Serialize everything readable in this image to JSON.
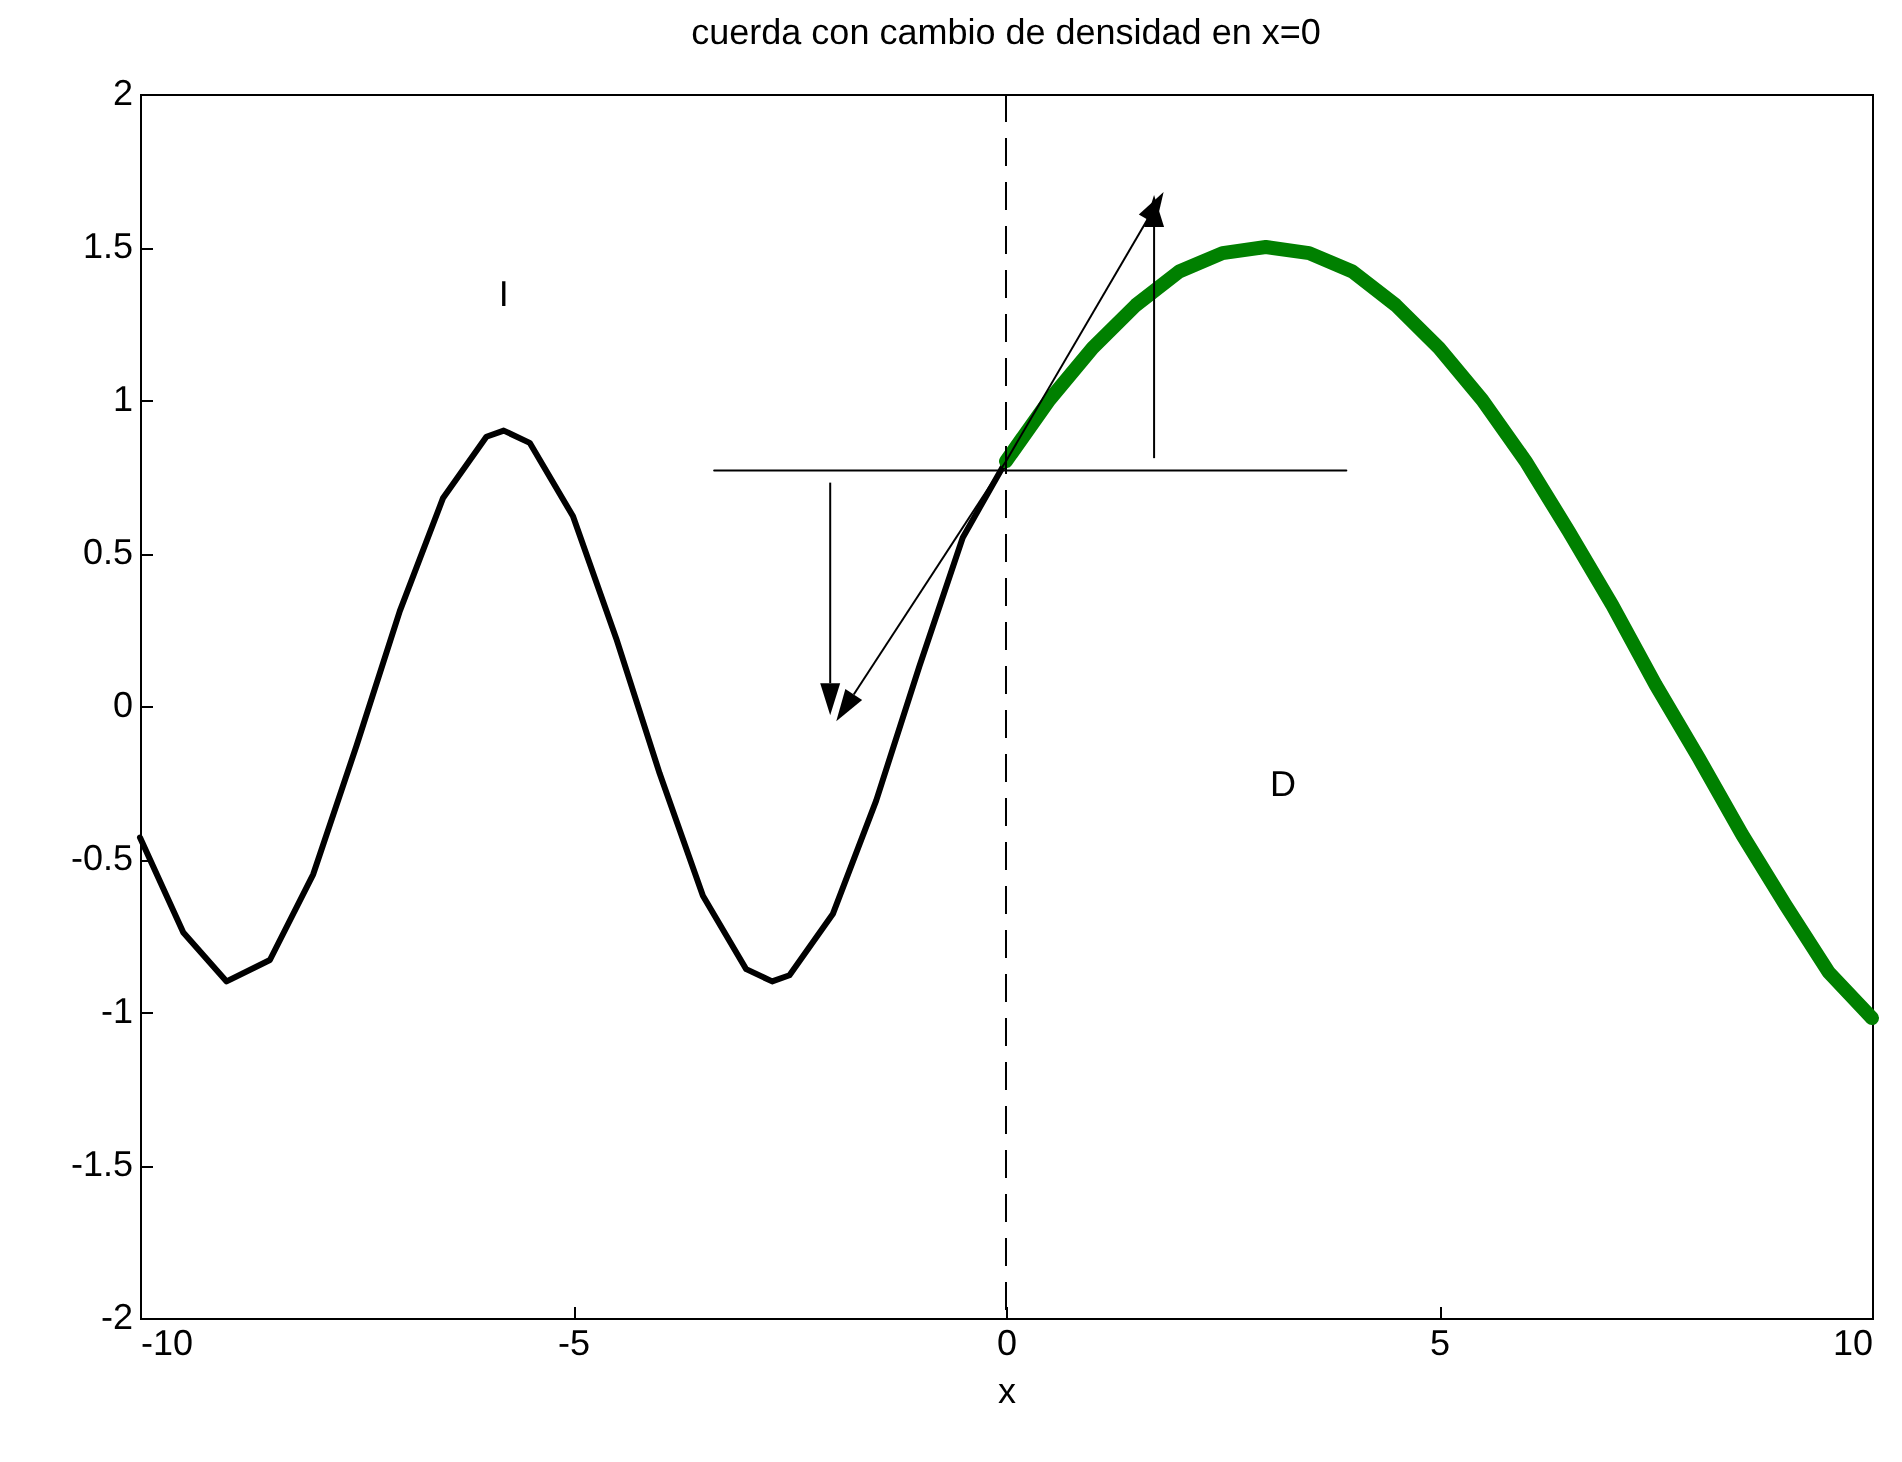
{
  "chart_data": {
    "type": "line",
    "title": "cuerda con cambio de densidad en x=0",
    "xlabel": "x",
    "xlim": [
      -10,
      10
    ],
    "xticks": [
      -10,
      -5,
      0,
      5,
      10
    ],
    "ylim": [
      -2,
      2
    ],
    "yticks": [
      -2,
      -1.5,
      -1,
      -0.5,
      0,
      0.5,
      1,
      1.5,
      2
    ],
    "series": [
      {
        "color": "#000000",
        "x": [
          -10,
          -9.5,
          -9,
          -8.5,
          -8,
          -7.5,
          -7,
          -6.5,
          -6,
          -5.8,
          -5.5,
          -5,
          -4.5,
          -4,
          -3.5,
          -3,
          -2.7,
          -2.5,
          -2,
          -1.5,
          -1,
          -0.5,
          0
        ],
        "values": [
          -0.43,
          -0.74,
          -0.9,
          -0.83,
          -0.55,
          -0.13,
          0.31,
          0.68,
          0.88,
          0.9,
          0.86,
          0.62,
          0.22,
          -0.22,
          -0.62,
          -0.86,
          -0.9,
          -0.88,
          -0.68,
          -0.31,
          0.13,
          0.55,
          0.8
        ]
      },
      {
        "color": "#008000",
        "x": [
          0,
          0.5,
          1,
          1.5,
          2,
          2.5,
          3,
          3.5,
          4,
          4.5,
          5,
          5.5,
          6,
          6.5,
          7,
          7.5,
          8,
          8.5,
          9,
          9.5,
          10
        ],
        "values": [
          0.8,
          1.0,
          1.17,
          1.31,
          1.42,
          1.48,
          1.5,
          1.48,
          1.42,
          1.31,
          1.17,
          1.0,
          0.8,
          0.57,
          0.33,
          0.07,
          -0.17,
          -0.42,
          -0.65,
          -0.87,
          -1.02
        ]
      },
      {
        "color": "#000000",
        "x": [
          -3.37,
          3.93
        ],
        "values": [
          0.77,
          0.77
        ]
      }
    ],
    "ref_lines": [
      {
        "axis": "x",
        "value": 0,
        "color": "#000000",
        "line_style": "dashed"
      }
    ],
    "annotations": [
      "I",
      "D"
    ],
    "legend": false,
    "marker": "none"
  }
}
